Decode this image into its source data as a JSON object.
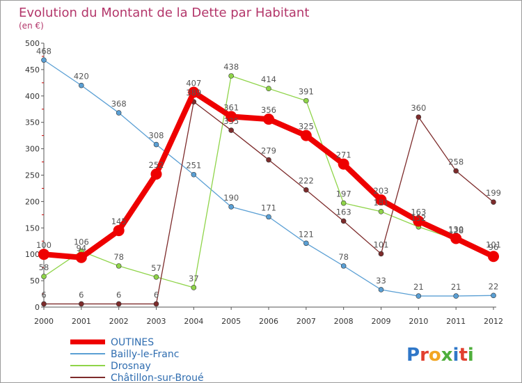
{
  "title": "Evolution du Montant de la Dette par Habitant",
  "subtitle": "(en €)",
  "logo_text": "Proxiti",
  "chart_data": {
    "type": "line",
    "title": "Evolution du Montant de la Dette par Habitant",
    "subtitle": "(en €)",
    "xlabel": "",
    "ylabel": "",
    "x": [
      2000,
      2001,
      2002,
      2003,
      2004,
      2005,
      2006,
      2007,
      2008,
      2009,
      2010,
      2011,
      2012
    ],
    "xticks": [
      "2000",
      "2001",
      "2002",
      "2003",
      "2004",
      "2005",
      "2006",
      "2007",
      "2008",
      "2009",
      "2010",
      "2011",
      "2012"
    ],
    "ylim": [
      0,
      500
    ],
    "yticks": [
      "0",
      "50",
      "100",
      "150",
      "200",
      "250",
      "300",
      "350",
      "400",
      "450",
      "500"
    ],
    "grid": false,
    "legend_position": "bottom-left",
    "series": [
      {
        "name": "OUTINES",
        "color": "#ee0000",
        "width": 8,
        "marker": 8,
        "values": [
          100,
          94,
          145,
          252,
          407,
          361,
          356,
          325,
          271,
          203,
          163,
          130,
          96
        ],
        "labels": [
          "100",
          "94",
          "145",
          "252",
          "407",
          "361",
          "356",
          "325",
          "271",
          "203",
          "163",
          "130",
          "96"
        ]
      },
      {
        "name": "Bailly-le-Franc",
        "color": "#5a9fd4",
        "width": 1.3,
        "marker": 3.5,
        "values": [
          468,
          420,
          368,
          308,
          251,
          190,
          171,
          121,
          78,
          33,
          21,
          21,
          22
        ],
        "labels": [
          "468",
          "420",
          "368",
          "308",
          "251",
          "190",
          "171",
          "121",
          "78",
          "33",
          "21",
          "21",
          "22"
        ]
      },
      {
        "name": "Drosnay",
        "color": "#8fd449",
        "width": 1.3,
        "marker": 3.5,
        "values": [
          58,
          106,
          78,
          57,
          37,
          438,
          414,
          391,
          197,
          181,
          152,
          128,
          101
        ],
        "labels": [
          "58",
          "106",
          "78",
          "57",
          "37",
          "438",
          "414",
          "391",
          "197",
          "181",
          "152",
          "128",
          "101"
        ]
      },
      {
        "name": "Châtillon-sur-Broué",
        "color": "#7d2b2b",
        "width": 1.3,
        "marker": 3.5,
        "values": [
          6,
          6,
          6,
          6,
          389,
          335,
          279,
          222,
          163,
          101,
          360,
          258,
          199
        ],
        "labels": [
          "6",
          "6",
          "6",
          "6",
          "389",
          "335",
          "279",
          "222",
          "163",
          "101",
          "360",
          "258",
          "199"
        ]
      }
    ]
  }
}
